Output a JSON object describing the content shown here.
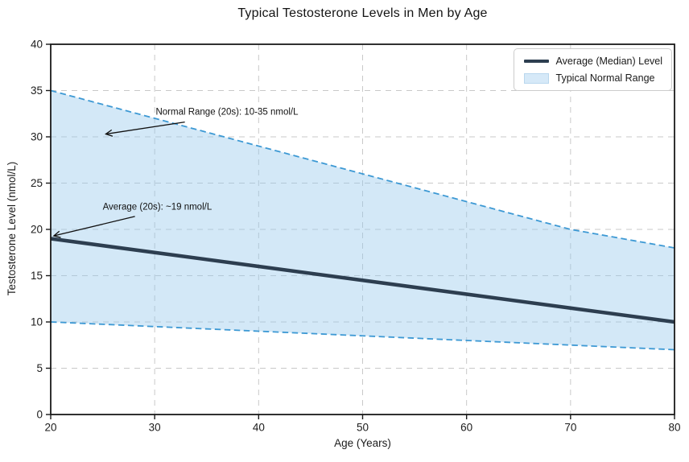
{
  "chart_data": {
    "type": "area",
    "title": "Typical Testosterone Levels in Men by Age",
    "xlabel": "Age (Years)",
    "ylabel": "Testosterone Level (nmol/L)",
    "xlim": [
      20,
      80
    ],
    "ylim": [
      0,
      40
    ],
    "xticks": [
      20,
      30,
      40,
      50,
      60,
      70,
      80
    ],
    "yticks": [
      0,
      5,
      10,
      15,
      20,
      25,
      30,
      35,
      40
    ],
    "grid": true,
    "grid_style": "dashed",
    "grid_color": "#c9c9c9",
    "x": [
      20,
      30,
      40,
      50,
      60,
      70,
      80
    ],
    "series": [
      {
        "name": "Average (Median) Level",
        "role": "median",
        "style": "solid",
        "color": "#2d3e50",
        "width": 4.5,
        "values": [
          19,
          17.5,
          16,
          14.5,
          13,
          11.5,
          10
        ]
      },
      {
        "name": "Typical Normal Range (upper bound)",
        "role": "upper",
        "style": "dashed",
        "color": "#3d99d4",
        "width": 1.8,
        "values": [
          35,
          32,
          29,
          26,
          23,
          20,
          18
        ]
      },
      {
        "name": "Typical Normal Range (lower bound)",
        "role": "lower",
        "style": "dashed",
        "color": "#3d99d4",
        "width": 1.8,
        "values": [
          10,
          9.5,
          9,
          8.5,
          8,
          7.5,
          7
        ]
      }
    ],
    "band": {
      "name": "Typical Normal Range",
      "between": [
        "upper",
        "lower"
      ],
      "fill": "#97c7eb",
      "opacity": 0.42
    },
    "legend": {
      "position": "upper right",
      "entries": [
        {
          "label": "Average (Median) Level",
          "swatch": "line",
          "color": "#2d3e50"
        },
        {
          "label": "Typical Normal Range",
          "swatch": "patch",
          "color": "#d6e9f8"
        }
      ]
    },
    "annotations": [
      {
        "text": "Normal Range (20s): 10-35 nmol/L",
        "text_xy": [
          30.1,
          32.65
        ],
        "arrow_start_xy": [
          32.9,
          31.6
        ],
        "arrow_tip_xy": [
          25.3,
          30.3
        ]
      },
      {
        "text": "Average (20s): ~19 nmol/L",
        "text_xy": [
          25.0,
          22.4
        ],
        "arrow_start_xy": [
          28.1,
          21.4
        ],
        "arrow_tip_xy": [
          20.3,
          19.3
        ]
      }
    ]
  }
}
